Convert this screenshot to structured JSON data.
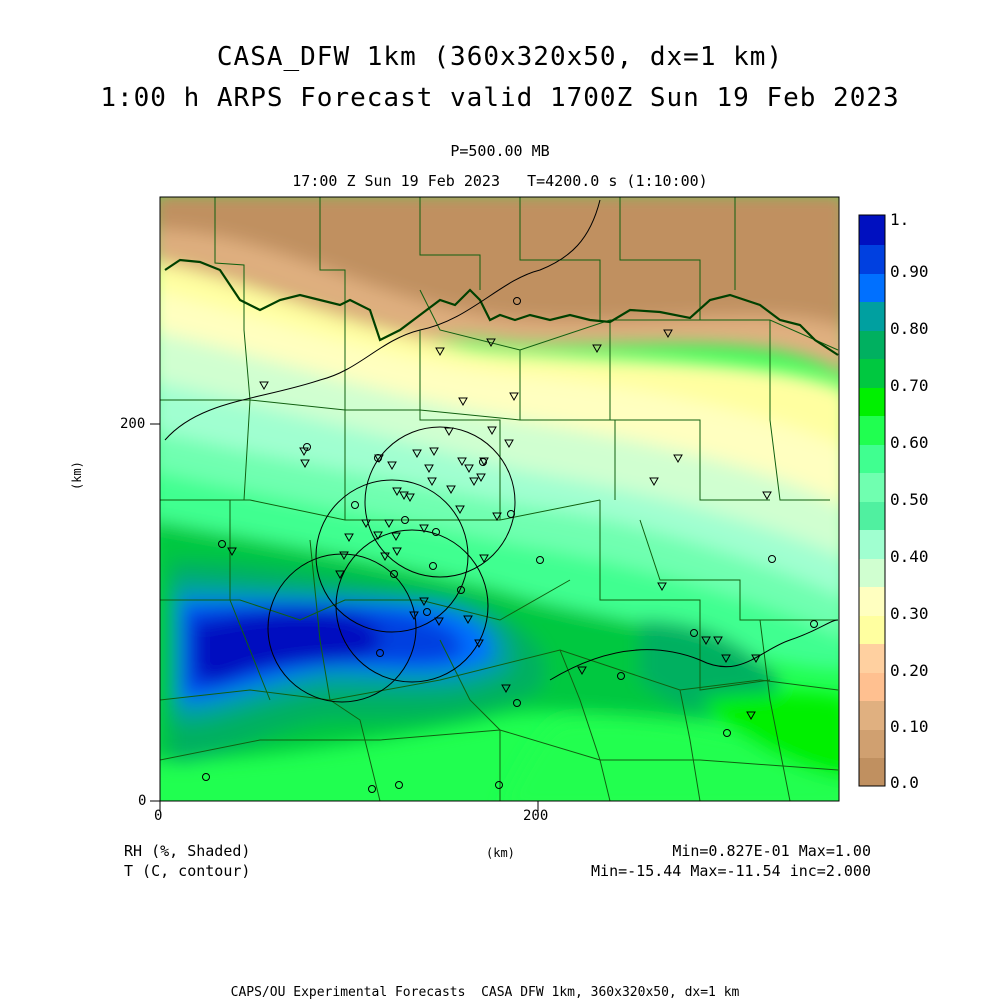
{
  "title_line1": "CASA_DFW 1km (360x320x50, dx=1 km)",
  "title_line2": "1:00 h ARPS Forecast valid 1700Z Sun 19 Feb 2023",
  "level": "P=500.00 MB",
  "time_line": "17:00 Z Sun 19 Feb 2023   T=4200.0 s (1:10:00)",
  "axes": {
    "x_ticks": [
      "0",
      "200"
    ],
    "y_ticks": [
      "0",
      "200"
    ],
    "x_unit": "(km)",
    "y_unit": "(km)"
  },
  "legend_left": {
    "line1": "RH (%, Shaded)",
    "line2": "T (C, contour)"
  },
  "stats": {
    "line1": "Min=0.827E-01 Max=1.00",
    "line2": "Min=-15.44 Max=-11.54 inc=2.000"
  },
  "footer": "CAPS/OU Experimental Forecasts  CASA DFW 1km, 360x320x50, dx=1 km",
  "colorbar": {
    "labels": [
      "1.",
      "0.90",
      "0.80",
      "0.70",
      "0.60",
      "0.50",
      "0.40",
      "0.30",
      "0.20",
      "0.10",
      "0.0"
    ],
    "colors": [
      "#0010c0",
      "#0040e0",
      "#0070ff",
      "#00a0a0",
      "#00b060",
      "#00c840",
      "#00f000",
      "#20ff50",
      "#40ff90",
      "#70ffb0",
      "#a0ffd0",
      "#d0ffd0",
      "#ffffc0",
      "#ffffa0",
      "#ffd0a0",
      "#ffc090",
      "#e0b080",
      "#d0a070",
      "#c09060"
    ]
  },
  "colors": {
    "state_border": "#004000",
    "county_line": "#106010",
    "contour": "#000000"
  }
}
